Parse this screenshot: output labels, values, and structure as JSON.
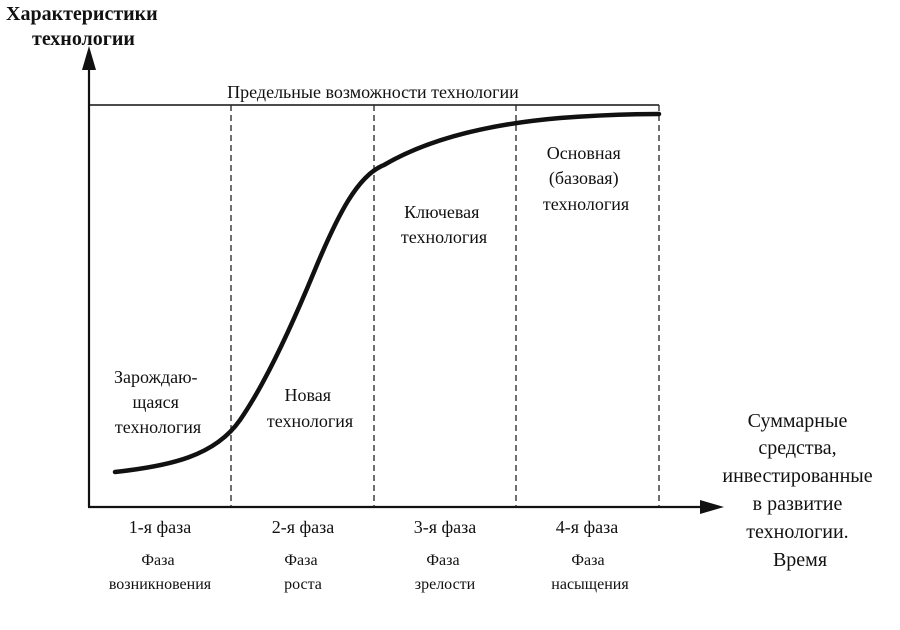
{
  "y_axis_title": [
    "Характеристики",
    "технологии"
  ],
  "ceiling_label": "Предельные возможности технологии",
  "x_axis_title": [
    "Суммарные",
    "средства,",
    "инвестированные",
    "в развитие",
    "технологии.",
    "Время"
  ],
  "regions": [
    {
      "lines": [
        "Зарождаю-",
        "щаяся",
        "технология"
      ]
    },
    {
      "lines": [
        "Новая",
        "технология"
      ]
    },
    {
      "lines": [
        "Ключевая",
        "технология"
      ]
    },
    {
      "lines": [
        "Основная",
        "(базовая)",
        "технология"
      ]
    }
  ],
  "phases": [
    {
      "number": "1-я фаза",
      "name": [
        "Фаза",
        "возникновения"
      ]
    },
    {
      "number": "2-я фаза",
      "name": [
        "Фаза",
        "роста"
      ]
    },
    {
      "number": "3-я фаза",
      "name": [
        "Фаза",
        "зрелости"
      ]
    },
    {
      "number": "4-я фаза",
      "name": [
        "Фаза",
        "насыщения"
      ]
    }
  ],
  "curve_shape": "s-curve"
}
